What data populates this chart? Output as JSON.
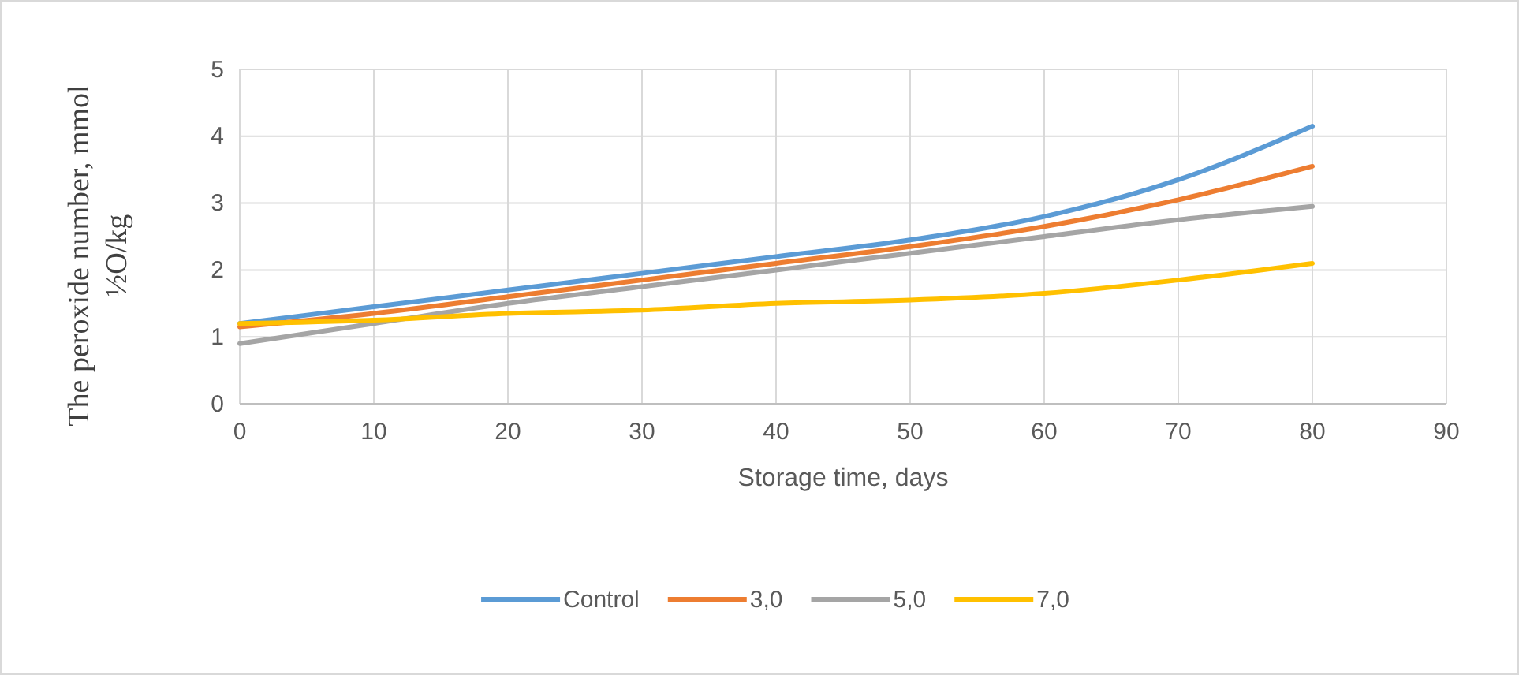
{
  "chart_data": {
    "type": "line",
    "xlabel": "Storage time, days",
    "ylabel": "The peroxide number, mmol ½O/kg",
    "x": [
      0,
      10,
      20,
      30,
      40,
      50,
      60,
      70,
      80
    ],
    "series": [
      {
        "name": "Control",
        "color": "#5b9bd5",
        "values": [
          1.2,
          1.45,
          1.7,
          1.95,
          2.2,
          2.45,
          2.8,
          3.35,
          4.15
        ]
      },
      {
        "name": "3,0",
        "color": "#ed7d31",
        "values": [
          1.15,
          1.35,
          1.6,
          1.85,
          2.1,
          2.35,
          2.65,
          3.05,
          3.55
        ]
      },
      {
        "name": "5,0",
        "color": "#a5a5a5",
        "values": [
          0.9,
          1.2,
          1.5,
          1.75,
          2.0,
          2.25,
          2.5,
          2.75,
          2.95
        ]
      },
      {
        "name": "7,0",
        "color": "#ffc000",
        "values": [
          1.2,
          1.25,
          1.35,
          1.4,
          1.5,
          1.55,
          1.65,
          1.85,
          2.1
        ]
      }
    ],
    "xlim": [
      0,
      90
    ],
    "xticks": [
      0,
      10,
      20,
      30,
      40,
      50,
      60,
      70,
      80,
      90
    ],
    "ylim": [
      0,
      5
    ],
    "yticks": [
      0,
      1,
      2,
      3,
      4,
      5
    ],
    "grid": true,
    "legend": "bottom",
    "marker": "none",
    "line_style": "solid"
  }
}
